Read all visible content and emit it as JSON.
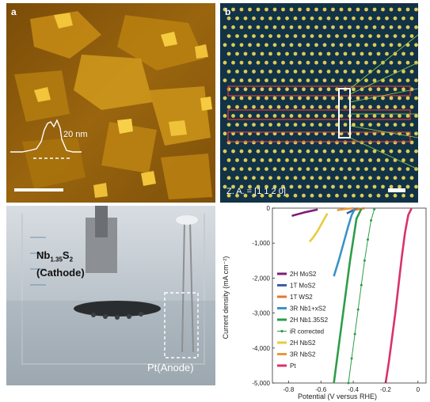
{
  "panel_a": {
    "label": "a",
    "profile_height": "20 nm"
  },
  "panel_b": {
    "label": "b",
    "zone_axis": "Z. A. = [1 1 2 0]"
  },
  "panel_c": {
    "cathode_label": "Nb",
    "cathode_subscript": "1.35",
    "cathode_s": "S",
    "cathode_s_sub": "2",
    "cathode_role": "(Cathode)",
    "anode_label": "Pt(Anode)"
  },
  "chart_data": {
    "type": "line",
    "ylabel": "Current density (mA cm⁻²)",
    "xlabel": "Potential (V versus RHE)",
    "xlim": [
      -0.9,
      0.05
    ],
    "ylim": [
      -5000,
      0
    ],
    "xticks": [
      "-0.8",
      "-0.6",
      "-0.4",
      "-0.2",
      "0"
    ],
    "yticks": [
      "0",
      "-1,000",
      "-2,000",
      "-3,000",
      "-4,000",
      "-5,000"
    ],
    "legend_position": "left",
    "series": [
      {
        "name": "2H MoS2",
        "color": "#7b1f7a",
        "x": [
          -0.78,
          -0.7,
          -0.62
        ],
        "y": [
          -220,
          -120,
          -40
        ]
      },
      {
        "name": "1T MoS2",
        "color": "#3a5fa8",
        "x": [
          -0.44,
          -0.4,
          -0.37
        ],
        "y": [
          -150,
          -60,
          -10
        ]
      },
      {
        "name": "1T WS2",
        "color": "#e07a2e",
        "x": [
          -0.4,
          -0.36,
          -0.33
        ],
        "y": [
          -60,
          -20,
          -5
        ]
      },
      {
        "name": "3R Nb1+xS2",
        "color": "#3a93c8",
        "x": [
          -0.52,
          -0.49,
          -0.46,
          -0.43,
          -0.41,
          -0.39
        ],
        "y": [
          -1950,
          -1500,
          -1000,
          -500,
          -200,
          -20
        ]
      },
      {
        "name": "2H Nb1.35S2",
        "color": "#2e9d49",
        "x": [
          -0.52,
          -0.5,
          -0.48,
          -0.46,
          -0.44,
          -0.42,
          -0.4,
          -0.38,
          -0.35
        ],
        "y": [
          -5000,
          -4300,
          -3600,
          -2900,
          -2200,
          -1500,
          -900,
          -300,
          -20
        ]
      },
      {
        "name": "iR corrected",
        "color": "#2e9d49",
        "marker": true,
        "x": [
          -0.43,
          -0.41,
          -0.39,
          -0.37,
          -0.35,
          -0.33,
          -0.31,
          -0.29,
          -0.27
        ],
        "y": [
          -5000,
          -4300,
          -3600,
          -2900,
          -2200,
          -1500,
          -900,
          -350,
          -30
        ]
      },
      {
        "name": "2H NbS2",
        "color": "#e8cc3c",
        "x": [
          -0.67,
          -0.65,
          -0.62,
          -0.59,
          -0.56
        ],
        "y": [
          -960,
          -850,
          -650,
          -400,
          -150
        ]
      },
      {
        "name": "3R NbS2",
        "color": "#e69a3a",
        "x": [
          -0.5,
          -0.45,
          -0.4
        ],
        "y": [
          -60,
          -25,
          -5
        ]
      },
      {
        "name": "Pt",
        "color": "#d8336a",
        "x": [
          -0.2,
          -0.18,
          -0.16,
          -0.14,
          -0.12,
          -0.1,
          -0.08,
          -0.06,
          -0.04
        ],
        "y": [
          -5000,
          -4400,
          -3700,
          -3000,
          -2200,
          -1400,
          -700,
          -200,
          -10
        ]
      }
    ]
  },
  "colors": {
    "afm_bg": "#8a5a0c",
    "afm_mid": "#c58a12",
    "afm_high": "#f0c23a",
    "stem_bg": "#0f2f42",
    "stem_spot": "#ffe65a",
    "box_red": "#e23b3b"
  }
}
